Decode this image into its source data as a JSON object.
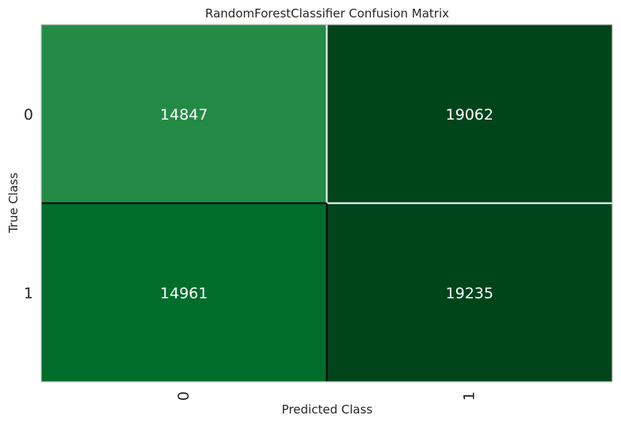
{
  "chart_data": {
    "type": "heatmap",
    "title": "RandomForestClassifier Confusion Matrix",
    "xlabel": "Predicted Class",
    "ylabel": "True Class",
    "x_categories": [
      "0",
      "1"
    ],
    "y_categories": [
      "0",
      "1"
    ],
    "values": [
      [
        14847,
        19062
      ],
      [
        14961,
        19235
      ]
    ],
    "colormap": "Greens",
    "cell_colors": [
      [
        "#238b45",
        "#00441b"
      ],
      [
        "#006d2c",
        "#00441b"
      ]
    ],
    "grid": false
  },
  "colors": {
    "frame": "#c8c8c8",
    "cell_border_light": "#ffffff",
    "cell_border_dark": "#000000",
    "text": "#262626",
    "cell_text": "#ffffff"
  }
}
